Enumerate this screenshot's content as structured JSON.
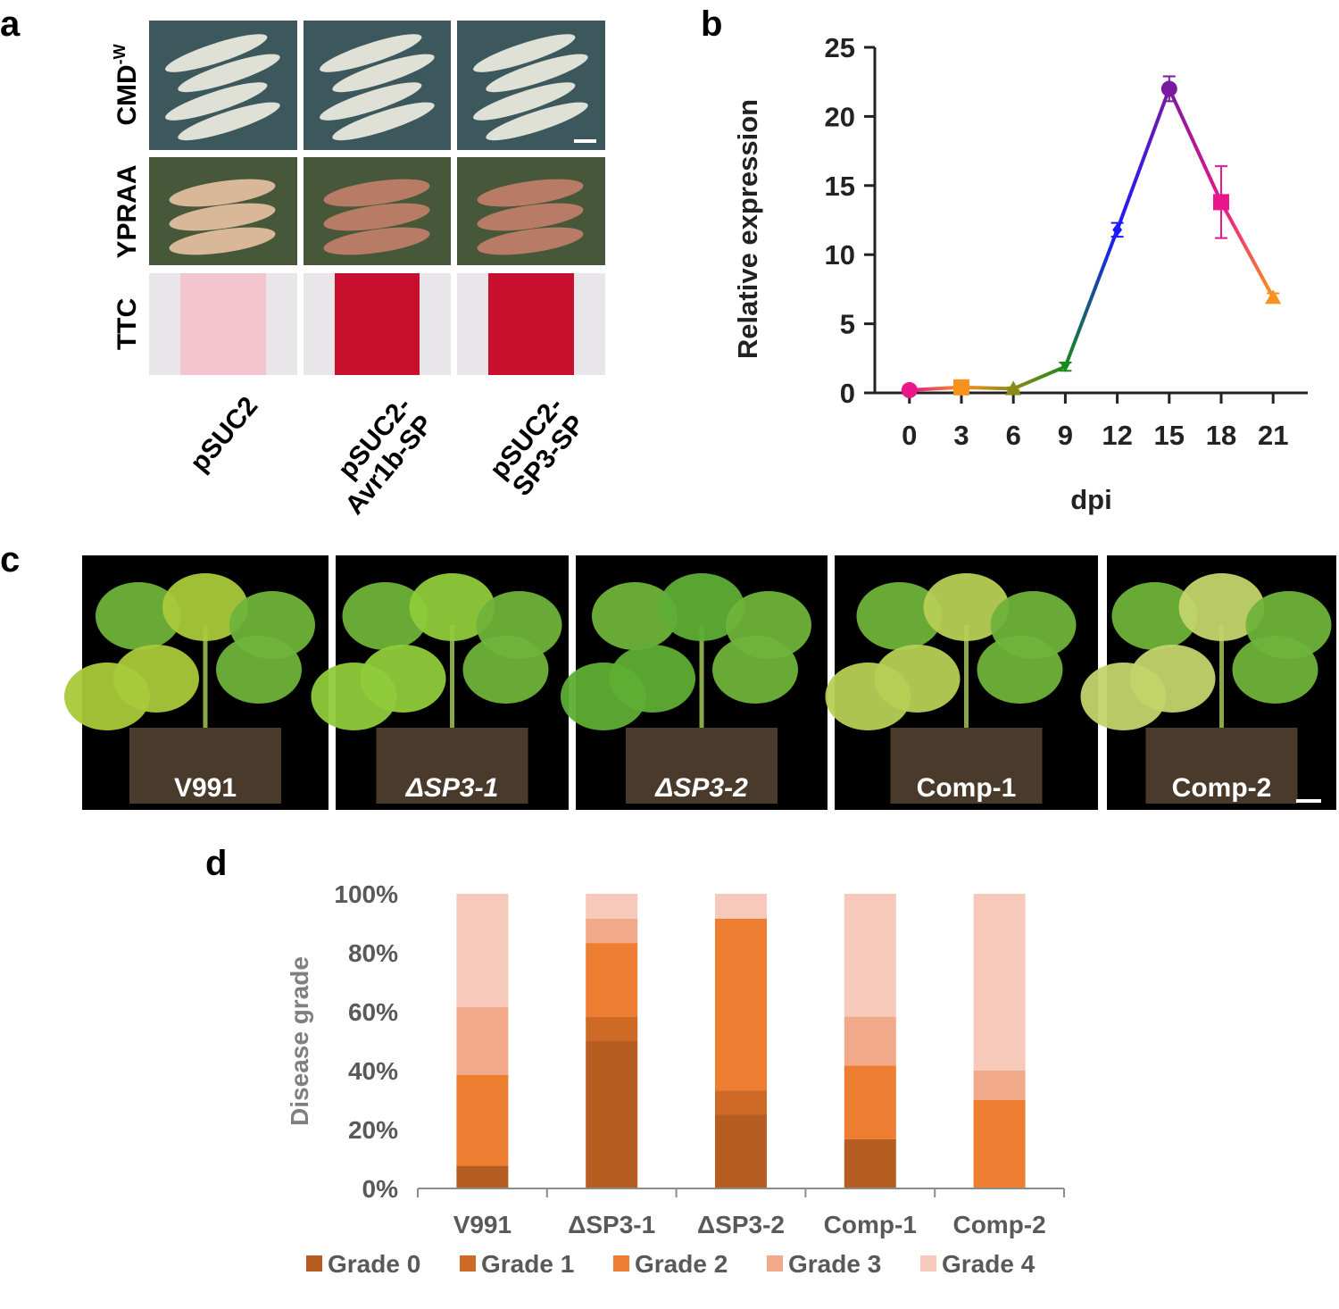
{
  "panel_labels": [
    "a",
    "b",
    "c",
    "d"
  ],
  "panel_a": {
    "row_labels": [
      {
        "text": "CMD",
        "sup": "-W"
      },
      {
        "text": "YPRAA"
      },
      {
        "text": "TTC"
      }
    ],
    "column_labels": [
      [
        "pSUC2"
      ],
      [
        "pSUC2-",
        "Avr1b-SP"
      ],
      [
        "pSUC2-",
        "SP3-SP"
      ]
    ]
  },
  "panel_c": {
    "labels": [
      {
        "text": "V991",
        "italic": false
      },
      {
        "text": "ΔSP3-1",
        "italic": true
      },
      {
        "text": "ΔSP3-2",
        "italic": true
      },
      {
        "text": "Comp-1",
        "italic": false
      },
      {
        "text": "Comp-2",
        "italic": false
      }
    ]
  },
  "chart_data": [
    {
      "type": "line",
      "xlabel": "dpi",
      "ylabel": "Relative expression",
      "x": [
        0,
        3,
        6,
        9,
        12,
        15,
        18,
        21
      ],
      "values": [
        0.2,
        0.4,
        0.3,
        1.9,
        11.8,
        22,
        13.8,
        6.9
      ],
      "errors": [
        0.1,
        0.1,
        0.1,
        0.3,
        0.5,
        0.9,
        2.6,
        0.3
      ],
      "colors": [
        "#e9168c",
        "#f7921e",
        "#8a8a1a",
        "#1a8a1a",
        "#1a1aff",
        "#7a1aa0",
        "#e9168c",
        "#f7921e"
      ],
      "markers": [
        "circle",
        "square",
        "triangle",
        "triangle-down",
        "diamond",
        "circle",
        "square",
        "triangle"
      ],
      "xlim": [
        -2,
        23
      ],
      "xticks": [
        0,
        3,
        6,
        9,
        12,
        15,
        18,
        21
      ],
      "ylim": [
        0,
        25
      ],
      "yticks": [
        0,
        5,
        10,
        15,
        20,
        25
      ]
    },
    {
      "type": "stacked-bar",
      "ylabel": "Disease grade",
      "categories": [
        "V991",
        "ΔSP3-1",
        "ΔSP3-2",
        "Comp-1",
        "Comp-2"
      ],
      "series": [
        {
          "name": "Grade 0",
          "color": "#b65d22",
          "values": [
            7.7,
            50,
            25,
            16.7,
            0
          ]
        },
        {
          "name": "Grade 1",
          "color": "#cf6a26",
          "values": [
            0,
            8.3,
            8.3,
            0,
            0
          ]
        },
        {
          "name": "Grade 2",
          "color": "#ed7d31",
          "values": [
            30.8,
            25,
            58.3,
            25,
            30
          ]
        },
        {
          "name": "Grade 3",
          "color": "#f1a98a",
          "values": [
            23.1,
            8.3,
            0,
            16.6,
            10
          ]
        },
        {
          "name": "Grade 4",
          "color": "#f6c9ba",
          "values": [
            38.4,
            8.4,
            8.4,
            41.7,
            60
          ]
        }
      ],
      "ylim": [
        0,
        100
      ],
      "yticks": [
        {
          "value": 0,
          "label": "0%"
        },
        {
          "value": 20,
          "label": "20%"
        },
        {
          "value": 40,
          "label": "40%"
        },
        {
          "value": 60,
          "label": "60%"
        },
        {
          "value": 80,
          "label": "80%"
        },
        {
          "value": 100,
          "label": "100%"
        }
      ],
      "legend": "bottom"
    }
  ]
}
